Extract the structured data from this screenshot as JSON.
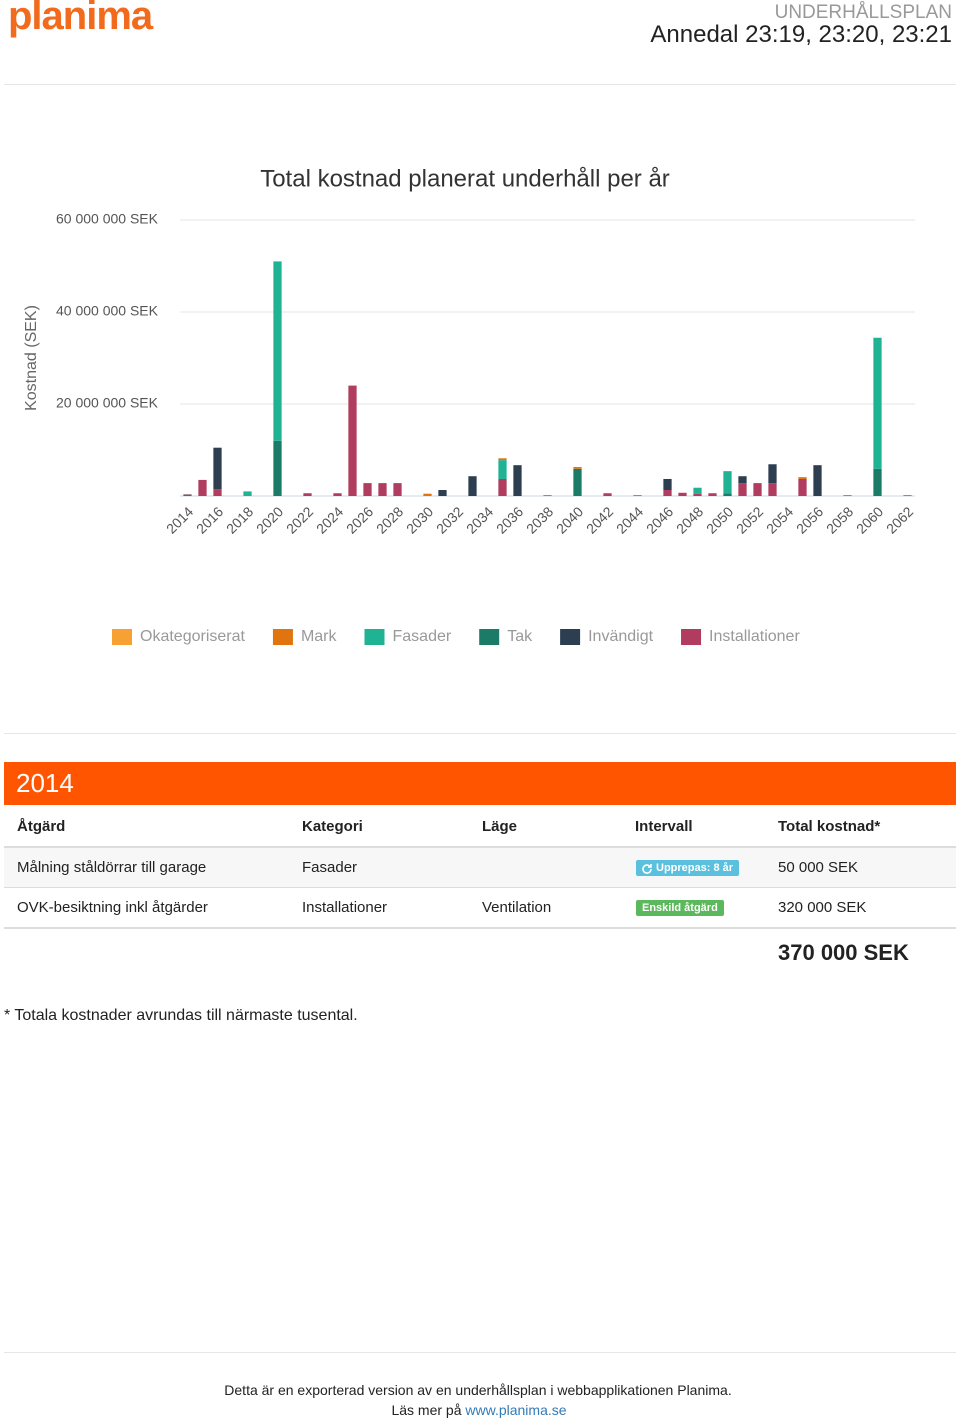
{
  "header": {
    "logo": "planima",
    "title": "UNDERHÅLLSPLAN",
    "subtitle": "Annedal 23:19, 23:20, 23:21"
  },
  "chart_data": {
    "type": "bar",
    "stacked": true,
    "title": "Total kostnad planerat underhåll per år",
    "y_label": "Kostnad (SEK)",
    "categories": [
      "2014",
      null,
      "2016",
      null,
      "2018",
      null,
      "2020",
      null,
      "2022",
      null,
      "2024",
      null,
      "2026",
      null,
      "2028",
      null,
      "2030",
      null,
      "2032",
      null,
      "2034",
      null,
      "2036",
      null,
      "2038",
      null,
      "2040",
      null,
      "2042",
      null,
      "2044",
      null,
      "2046",
      null,
      "2048",
      null,
      "2050",
      null,
      "2052",
      null,
      "2054",
      null,
      "2056",
      null,
      "2058",
      null,
      "2060",
      null,
      "2062"
    ],
    "ylim": [
      0,
      60000000
    ],
    "yticks": [
      {
        "value": 20000000,
        "label": "20 000 000 SEK"
      },
      {
        "value": 40000000,
        "label": "40 000 000 SEK"
      },
      {
        "value": 60000000,
        "label": "60 000 000 SEK"
      }
    ],
    "grid": true,
    "legend": "bottom",
    "series": [
      {
        "name": "Installationer",
        "color": "#b03c5f",
        "values": [
          320000,
          3500000,
          1500000,
          0,
          0,
          0,
          0,
          0,
          600000,
          0,
          600000,
          24000000,
          2800000,
          2800000,
          2800000,
          0,
          0,
          0,
          0,
          0,
          0,
          3700000,
          0,
          0,
          0,
          0,
          0,
          0,
          600000,
          0,
          0,
          0,
          1300000,
          700000,
          500000,
          600000,
          0,
          2800000,
          2800000,
          2800000,
          0,
          3700000,
          0,
          0,
          0,
          0,
          0,
          0,
          0
        ]
      },
      {
        "name": "Invändigt",
        "color": "#2c3e50",
        "values": [
          0,
          0,
          9000000,
          0,
          0,
          0,
          0,
          0,
          0,
          0,
          0,
          0,
          0,
          0,
          0,
          0,
          0,
          1300000,
          0,
          4300000,
          0,
          0,
          6700000,
          0,
          0,
          0,
          0,
          0,
          0,
          0,
          0,
          0,
          2400000,
          0,
          0,
          0,
          0,
          1500000,
          0,
          4100000,
          0,
          0,
          6700000,
          0,
          0,
          0,
          0,
          0,
          0
        ]
      },
      {
        "name": "Tak",
        "color": "#1b7b66",
        "values": [
          0,
          0,
          0,
          0,
          0,
          0,
          12000000,
          0,
          0,
          0,
          0,
          0,
          0,
          0,
          0,
          0,
          0,
          0,
          0,
          0,
          0,
          0,
          0,
          0,
          0,
          0,
          5900000,
          0,
          0,
          0,
          0,
          0,
          0,
          0,
          0,
          0,
          600000,
          0,
          0,
          0,
          0,
          0,
          0,
          0,
          0,
          0,
          5900000,
          0,
          0
        ]
      },
      {
        "name": "Fasader",
        "color": "#1fb394",
        "values": [
          50000,
          0,
          0,
          0,
          1000000,
          0,
          39000000,
          0,
          0,
          0,
          0,
          0,
          0,
          0,
          0,
          0,
          0,
          0,
          0,
          0,
          0,
          4100000,
          0,
          0,
          200000,
          0,
          0,
          0,
          0,
          0,
          200000,
          0,
          0,
          0,
          1300000,
          0,
          4800000,
          0,
          0,
          0,
          0,
          0,
          0,
          0,
          200000,
          0,
          28500000,
          0,
          200000
        ]
      },
      {
        "name": "Mark",
        "color": "#e07510",
        "values": [
          0,
          0,
          0,
          0,
          0,
          0,
          0,
          0,
          0,
          0,
          0,
          0,
          0,
          0,
          0,
          0,
          500000,
          0,
          0,
          0,
          0,
          400000,
          0,
          0,
          0,
          0,
          400000,
          0,
          0,
          0,
          0,
          0,
          0,
          0,
          0,
          0,
          0,
          0,
          0,
          0,
          0,
          400000,
          0,
          0,
          0,
          0,
          0,
          0,
          0
        ]
      },
      {
        "name": "Okategoriserat",
        "color": "#f7a033",
        "values": [
          0,
          0,
          0,
          0,
          0,
          0,
          0,
          0,
          0,
          0,
          0,
          0,
          0,
          0,
          0,
          0,
          0,
          0,
          0,
          0,
          0,
          0,
          0,
          0,
          0,
          0,
          0,
          0,
          0,
          0,
          0,
          0,
          0,
          0,
          0,
          0,
          0,
          0,
          0,
          0,
          0,
          0,
          0,
          0,
          0,
          0,
          0,
          0,
          0
        ]
      }
    ]
  },
  "section": {
    "year": "2014",
    "columns": [
      "Åtgärd",
      "Kategori",
      "Läge",
      "Intervall",
      "Total kostnad*"
    ],
    "rows": [
      {
        "action": "Målning ståldörrar till garage",
        "category": "Fasader",
        "interval": "Upprepas: 8 år",
        "cost": "50 000 SEK"
      },
      {
        "action": "OVK-besiktning inkl åtgärder",
        "category": "Installationer",
        "location": "Ventilation",
        "interval": "Enskild åtgärd",
        "cost": "320 000 SEK"
      }
    ],
    "total": "370 000 SEK"
  },
  "note": "* Totala kostnader avrundas till närmaste tusental.",
  "footer": {
    "text": "Detta är en exporterad version av en underhållsplan i webbapplikationen Planima.",
    "more": "Läs mer på",
    "link": "www.planima.se"
  }
}
